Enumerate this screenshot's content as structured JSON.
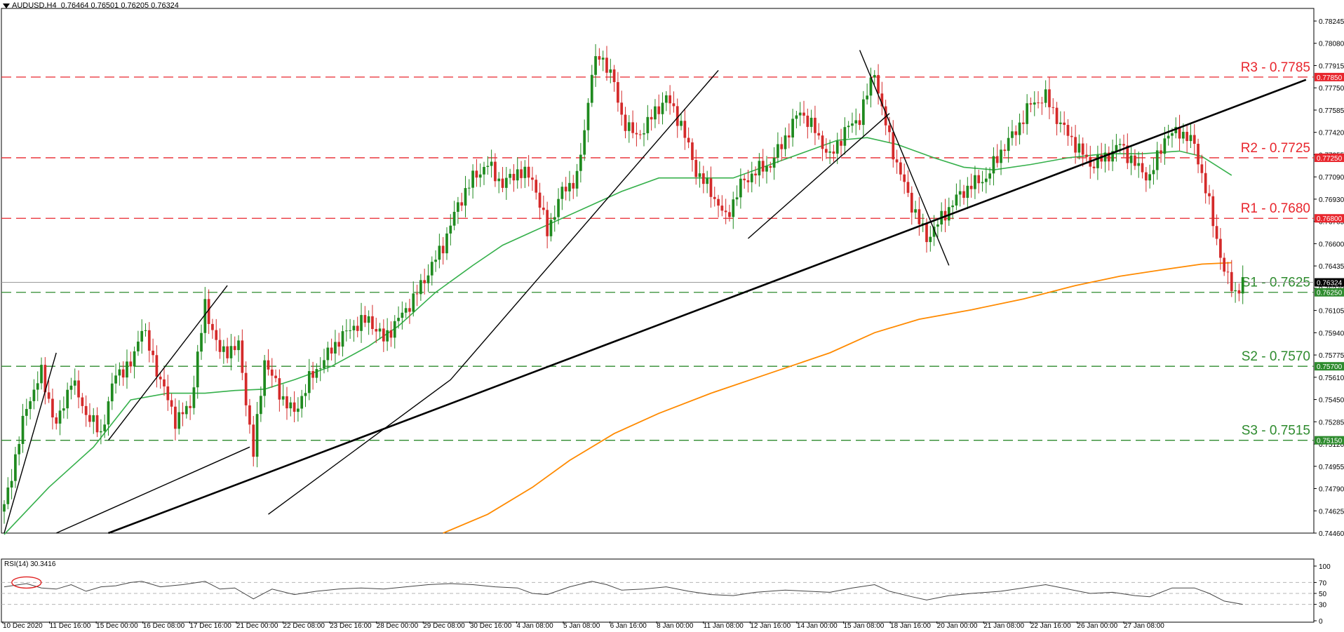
{
  "header": {
    "symbol": "AUDUSD,H4",
    "ohlc": "0.76464 0.76501 0.76205 0.76324"
  },
  "rsi_label": "RSI(14) 30.3416",
  "chart_data": {
    "type": "candlestick",
    "symbol": "AUDUSD",
    "timeframe": "H4",
    "price_axis": {
      "ylim": [
        0.7446,
        0.7835
      ],
      "ticks": [
        "0.78245",
        "0.78080",
        "0.77915",
        "0.77750",
        "0.77585",
        "0.77420",
        "0.77255",
        "0.77090",
        "0.76930",
        "0.76765",
        "0.76600",
        "0.76435",
        "0.76270",
        "0.76105",
        "0.75940",
        "0.75775",
        "0.75610",
        "0.75450",
        "0.75285",
        "0.75120",
        "0.74955",
        "0.74790",
        "0.74625",
        "0.74460"
      ]
    },
    "time_axis": {
      "labels": [
        "10 Dec 2020",
        "11 Dec 16:00",
        "15 Dec 00:00",
        "16 Dec 08:00",
        "17 Dec 16:00",
        "21 Dec 00:00",
        "22 Dec 08:00",
        "23 Dec 16:00",
        "28 Dec 00:00",
        "29 Dec 08:00",
        "30 Dec 16:00",
        "4 Jan 08:00",
        "5 Jan 08:00",
        "6 Jan 16:00",
        "8 Jan 00:00",
        "11 Jan 08:00",
        "12 Jan 16:00",
        "14 Jan 00:00",
        "15 Jan 08:00",
        "18 Jan 16:00",
        "20 Jan 00:00",
        "21 Jan 08:00",
        "22 Jan 16:00",
        "26 Jan 00:00",
        "27 Jan 08:00"
      ]
    },
    "last_price": 0.76324,
    "levels": [
      {
        "label": "R3 - 0.7785",
        "price": 0.7785,
        "tag": "0.77850",
        "kind": "resistance"
      },
      {
        "label": "R2 - 0.7725",
        "price": 0.7725,
        "tag": "0.77250",
        "kind": "resistance"
      },
      {
        "label": "R1 - 0.7680",
        "price": 0.768,
        "tag": "0.76800",
        "kind": "resistance"
      },
      {
        "label": "S1 - 0.7625",
        "price": 0.7625,
        "tag": "0.76250",
        "kind": "support"
      },
      {
        "label": "S2 - 0.7570",
        "price": 0.757,
        "tag": "0.75700",
        "kind": "support"
      },
      {
        "label": "S3 - 0.7515",
        "price": 0.7515,
        "tag": "0.75150",
        "kind": "support"
      }
    ],
    "close_anchors": [
      [
        0,
        0.7465
      ],
      [
        6,
        0.754
      ],
      [
        10,
        0.7565
      ],
      [
        14,
        0.7525
      ],
      [
        18,
        0.756
      ],
      [
        22,
        0.7535
      ],
      [
        26,
        0.752
      ],
      [
        30,
        0.7565
      ],
      [
        34,
        0.757
      ],
      [
        37,
        0.76
      ],
      [
        40,
        0.7575
      ],
      [
        44,
        0.7545
      ],
      [
        46,
        0.753
      ],
      [
        50,
        0.754
      ],
      [
        54,
        0.7615
      ],
      [
        58,
        0.758
      ],
      [
        63,
        0.7585
      ],
      [
        67,
        0.7505
      ],
      [
        70,
        0.7575
      ],
      [
        74,
        0.755
      ],
      [
        78,
        0.7535
      ],
      [
        82,
        0.756
      ],
      [
        86,
        0.7575
      ],
      [
        90,
        0.759
      ],
      [
        94,
        0.76
      ],
      [
        98,
        0.7605
      ],
      [
        102,
        0.759
      ],
      [
        106,
        0.7605
      ],
      [
        110,
        0.762
      ],
      [
        114,
        0.764
      ],
      [
        118,
        0.766
      ],
      [
        122,
        0.769
      ],
      [
        126,
        0.771
      ],
      [
        130,
        0.772
      ],
      [
        134,
        0.7705
      ],
      [
        138,
        0.7715
      ],
      [
        142,
        0.771
      ],
      [
        146,
        0.767
      ],
      [
        150,
        0.77
      ],
      [
        154,
        0.771
      ],
      [
        156,
        0.7745
      ],
      [
        158,
        0.779
      ],
      [
        160,
        0.78
      ],
      [
        163,
        0.779
      ],
      [
        166,
        0.7755
      ],
      [
        170,
        0.774
      ],
      [
        174,
        0.7755
      ],
      [
        178,
        0.777
      ],
      [
        182,
        0.775
      ],
      [
        186,
        0.7715
      ],
      [
        190,
        0.77
      ],
      [
        194,
        0.768
      ],
      [
        198,
        0.7705
      ],
      [
        202,
        0.7715
      ],
      [
        206,
        0.772
      ],
      [
        210,
        0.774
      ],
      [
        214,
        0.776
      ],
      [
        218,
        0.7745
      ],
      [
        222,
        0.7725
      ],
      [
        226,
        0.7745
      ],
      [
        230,
        0.7755
      ],
      [
        234,
        0.779
      ],
      [
        236,
        0.776
      ],
      [
        240,
        0.772
      ],
      [
        244,
        0.769
      ],
      [
        248,
        0.7665
      ],
      [
        252,
        0.768
      ],
      [
        256,
        0.7695
      ],
      [
        260,
        0.7705
      ],
      [
        264,
        0.771
      ],
      [
        268,
        0.773
      ],
      [
        272,
        0.7745
      ],
      [
        276,
        0.7765
      ],
      [
        280,
        0.777
      ],
      [
        284,
        0.775
      ],
      [
        288,
        0.7735
      ],
      [
        292,
        0.772
      ],
      [
        296,
        0.7725
      ],
      [
        300,
        0.7735
      ],
      [
        304,
        0.772
      ],
      [
        308,
        0.771
      ],
      [
        312,
        0.774
      ],
      [
        316,
        0.7745
      ],
      [
        320,
        0.7735
      ],
      [
        324,
        0.769
      ],
      [
        328,
        0.764
      ],
      [
        331,
        0.7625
      ],
      [
        333,
        0.7632
      ]
    ],
    "ema_fast": [
      [
        0,
        0.7445
      ],
      [
        12,
        0.748
      ],
      [
        24,
        0.751
      ],
      [
        34,
        0.7545
      ],
      [
        44,
        0.755
      ],
      [
        54,
        0.755
      ],
      [
        62,
        0.7552
      ],
      [
        70,
        0.7553
      ],
      [
        78,
        0.756
      ],
      [
        88,
        0.757
      ],
      [
        98,
        0.7585
      ],
      [
        106,
        0.76
      ],
      [
        116,
        0.7625
      ],
      [
        126,
        0.7645
      ],
      [
        134,
        0.766
      ],
      [
        142,
        0.767
      ],
      [
        150,
        0.768
      ],
      [
        158,
        0.769
      ],
      [
        166,
        0.77
      ],
      [
        176,
        0.771
      ],
      [
        186,
        0.771
      ],
      [
        196,
        0.771
      ],
      [
        206,
        0.772
      ],
      [
        216,
        0.773
      ],
      [
        224,
        0.7738
      ],
      [
        232,
        0.774
      ],
      [
        240,
        0.7735
      ],
      [
        250,
        0.7725
      ],
      [
        258,
        0.7718
      ],
      [
        266,
        0.7716
      ],
      [
        276,
        0.772
      ],
      [
        286,
        0.7725
      ],
      [
        296,
        0.7728
      ],
      [
        306,
        0.7728
      ],
      [
        316,
        0.773
      ],
      [
        322,
        0.7726
      ],
      [
        330,
        0.7712
      ]
    ],
    "ema_slow": [
      [
        118,
        0.7446
      ],
      [
        130,
        0.746
      ],
      [
        142,
        0.748
      ],
      [
        152,
        0.75
      ],
      [
        164,
        0.752
      ],
      [
        176,
        0.7535
      ],
      [
        190,
        0.755
      ],
      [
        206,
        0.7565
      ],
      [
        222,
        0.758
      ],
      [
        234,
        0.7595
      ],
      [
        246,
        0.7605
      ],
      [
        260,
        0.7612
      ],
      [
        274,
        0.762
      ],
      [
        288,
        0.763
      ],
      [
        300,
        0.7637
      ],
      [
        312,
        0.7642
      ],
      [
        322,
        0.7646
      ],
      [
        330,
        0.7647
      ]
    ],
    "trendlines": [
      [
        [
          0,
          0.7446
        ],
        [
          14,
          0.758
        ]
      ],
      [
        [
          28,
          0.7515
        ],
        [
          60,
          0.763
        ]
      ],
      [
        [
          14,
          0.7446
        ],
        [
          66,
          0.751
        ]
      ],
      [
        [
          28,
          0.7446
        ],
        [
          350,
          0.7783
        ]
      ],
      [
        [
          71,
          0.746
        ],
        [
          120,
          0.756
        ],
        [
          192,
          0.779
        ]
      ],
      [
        [
          200,
          0.7665
        ],
        [
          238,
          0.7758
        ]
      ],
      [
        [
          230,
          0.7805
        ],
        [
          254,
          0.7645
        ]
      ]
    ],
    "rsi": {
      "period": 14,
      "value": 30.3416,
      "levels": [
        70,
        50,
        30
      ],
      "axis_ticks": [
        "100",
        "70",
        "50",
        "30",
        "0"
      ],
      "points": [
        [
          0,
          62
        ],
        [
          6,
          68
        ],
        [
          10,
          60
        ],
        [
          14,
          58
        ],
        [
          18,
          66
        ],
        [
          22,
          54
        ],
        [
          26,
          62
        ],
        [
          30,
          64
        ],
        [
          34,
          70
        ],
        [
          37,
          72
        ],
        [
          42,
          62
        ],
        [
          48,
          66
        ],
        [
          54,
          72
        ],
        [
          58,
          58
        ],
        [
          62,
          60
        ],
        [
          67,
          40
        ],
        [
          72,
          58
        ],
        [
          78,
          48
        ],
        [
          84,
          54
        ],
        [
          90,
          58
        ],
        [
          96,
          60
        ],
        [
          102,
          58
        ],
        [
          108,
          62
        ],
        [
          114,
          66
        ],
        [
          120,
          68
        ],
        [
          126,
          66
        ],
        [
          132,
          62
        ],
        [
          138,
          60
        ],
        [
          142,
          50
        ],
        [
          146,
          48
        ],
        [
          152,
          62
        ],
        [
          158,
          72
        ],
        [
          162,
          66
        ],
        [
          166,
          56
        ],
        [
          172,
          58
        ],
        [
          178,
          62
        ],
        [
          184,
          54
        ],
        [
          190,
          48
        ],
        [
          196,
          46
        ],
        [
          202,
          52
        ],
        [
          210,
          56
        ],
        [
          216,
          54
        ],
        [
          222,
          52
        ],
        [
          228,
          60
        ],
        [
          234,
          66
        ],
        [
          238,
          54
        ],
        [
          244,
          44
        ],
        [
          248,
          38
        ],
        [
          254,
          46
        ],
        [
          260,
          50
        ],
        [
          268,
          54
        ],
        [
          276,
          62
        ],
        [
          280,
          66
        ],
        [
          286,
          58
        ],
        [
          292,
          50
        ],
        [
          298,
          52
        ],
        [
          304,
          46
        ],
        [
          308,
          44
        ],
        [
          314,
          60
        ],
        [
          320,
          60
        ],
        [
          324,
          50
        ],
        [
          328,
          36
        ],
        [
          333,
          30
        ]
      ]
    }
  },
  "colors": {
    "bull": "#1f8a1f",
    "bear": "#d42a2a",
    "resistance": "#e8262d",
    "support": "#2e8b2e",
    "ema_fast": "#35b04b",
    "ema_slow": "#ff8a00",
    "trendline": "#000000"
  }
}
